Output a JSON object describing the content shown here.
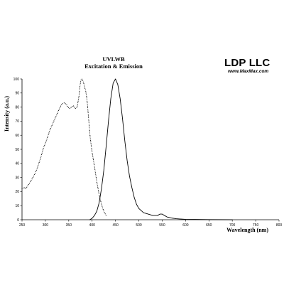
{
  "logo": {
    "name": "LDP LLC",
    "url": "www.MaxMax.com"
  },
  "chart_data": {
    "type": "line",
    "title": "UVLWB",
    "subtitle": "Excitation & Emission",
    "xlabel": "Wavelength (nm)",
    "ylabel": "Intensity (a.u.)",
    "xlim": [
      250,
      800
    ],
    "ylim": [
      0,
      100
    ],
    "xticks": [
      250,
      300,
      350,
      400,
      450,
      500,
      550,
      600,
      650,
      700,
      750,
      800
    ],
    "yticks": [
      0,
      10,
      20,
      30,
      40,
      50,
      60,
      70,
      80,
      90,
      100
    ],
    "grid": false,
    "series": [
      {
        "style": "dotted",
        "x": [
          250,
          255,
          258,
          262,
          268,
          275,
          282,
          290,
          296,
          302,
          310,
          318,
          325,
          330,
          335,
          340,
          345,
          348,
          352,
          356,
          360,
          364,
          368,
          372,
          374,
          376,
          378,
          380,
          382,
          384,
          386,
          388,
          390,
          393,
          396,
          400,
          405,
          410,
          415,
          420,
          425,
          430
        ],
        "y": [
          22,
          23,
          22,
          24,
          27,
          31,
          36,
          44,
          51,
          56,
          64,
          70,
          75,
          79,
          82,
          83,
          82,
          80,
          79,
          80,
          81,
          79,
          80,
          88,
          95,
          99,
          100,
          99,
          97,
          94,
          92,
          88,
          82,
          70,
          58,
          48,
          38,
          27,
          18,
          11,
          6,
          3
        ]
      },
      {
        "style": "solid",
        "x": [
          395,
          400,
          405,
          410,
          415,
          420,
          425,
          430,
          435,
          440,
          445,
          450,
          455,
          460,
          465,
          470,
          475,
          480,
          485,
          490,
          495,
          500,
          510,
          520,
          530,
          540,
          545,
          550,
          555,
          560,
          570,
          580,
          600,
          620,
          650,
          700
        ],
        "y": [
          0,
          1,
          3,
          6,
          12,
          22,
          35,
          52,
          70,
          86,
          97,
          100,
          96,
          86,
          72,
          56,
          42,
          31,
          23,
          16,
          11,
          8,
          5,
          4,
          3,
          3,
          4,
          4,
          3,
          2,
          1.2,
          0.7,
          0.3,
          0.2,
          0.1,
          0
        ]
      }
    ]
  }
}
